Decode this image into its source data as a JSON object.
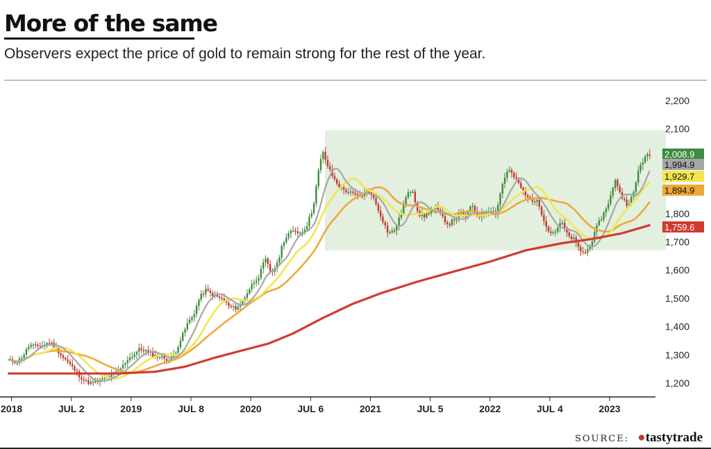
{
  "header": {
    "title": "More of the same",
    "subtitle": "Observers expect the price of gold to remain strong for the rest of the year."
  },
  "footer": {
    "source_label": "SOURCE:",
    "source_brand": "tastytrade"
  },
  "colors": {
    "up_candle": "#3d8c40",
    "down_candle": "#c0392b",
    "ma_grey": "#a6a6a6",
    "ma_yellow": "#f1e650",
    "ma_orange": "#eea83a",
    "ma_red": "#d13a32",
    "range_band": "#e3efdf"
  },
  "chart_data": {
    "type": "line",
    "x_tick_labels": [
      "2018",
      "JUL 2",
      "2019",
      "JUL 8",
      "2020",
      "JUL 6",
      "2021",
      "JUL 5",
      "2022",
      "JUL 4",
      "2023"
    ],
    "y_tick_labels": [
      "1,200",
      "1,300",
      "1,400",
      "1,500",
      "1,600",
      "1,700",
      "1,800",
      "2,100",
      "2,200"
    ],
    "ylim": [
      1170,
      2230
    ],
    "highlight_band": {
      "x_from": 2020.62,
      "x_to": 2023.47,
      "y_from": 1670,
      "y_to": 2095
    },
    "price_labels": [
      {
        "series": "Price",
        "value": 2008.9,
        "text": "2,008.9",
        "color": "#3d8c40",
        "text_color": "#ffffff"
      },
      {
        "series": "MA-grey",
        "value": 1994.9,
        "text": "1,994.9",
        "color": "#a6a6a6",
        "text_color": "#111111"
      },
      {
        "series": "MA-yellow",
        "value": 1929.7,
        "text": "1,929.7",
        "color": "#f1e650",
        "text_color": "#111111"
      },
      {
        "series": "MA-orange",
        "value": 1894.9,
        "text": "1,894.9",
        "color": "#eea83a",
        "text_color": "#111111"
      },
      {
        "series": "MA-red",
        "value": 1759.6,
        "text": "1,759.6",
        "color": "#d13a32",
        "text_color": "#ffffff"
      }
    ],
    "price_path": [
      [
        2017.97,
        1280
      ],
      [
        2018.05,
        1275
      ],
      [
        2018.1,
        1300
      ],
      [
        2018.15,
        1335
      ],
      [
        2018.2,
        1330
      ],
      [
        2018.27,
        1335
      ],
      [
        2018.32,
        1345
      ],
      [
        2018.37,
        1325
      ],
      [
        2018.42,
        1295
      ],
      [
        2018.47,
        1275
      ],
      [
        2018.52,
        1250
      ],
      [
        2018.57,
        1225
      ],
      [
        2018.62,
        1205
      ],
      [
        2018.67,
        1200
      ],
      [
        2018.72,
        1205
      ],
      [
        2018.77,
        1215
      ],
      [
        2018.82,
        1225
      ],
      [
        2018.87,
        1235
      ],
      [
        2018.92,
        1255
      ],
      [
        2018.97,
        1285
      ],
      [
        2019.02,
        1300
      ],
      [
        2019.07,
        1320
      ],
      [
        2019.12,
        1315
      ],
      [
        2019.17,
        1300
      ],
      [
        2019.22,
        1295
      ],
      [
        2019.27,
        1290
      ],
      [
        2019.32,
        1280
      ],
      [
        2019.37,
        1310
      ],
      [
        2019.42,
        1360
      ],
      [
        2019.47,
        1410
      ],
      [
        2019.52,
        1440
      ],
      [
        2019.57,
        1500
      ],
      [
        2019.62,
        1530
      ],
      [
        2019.67,
        1515
      ],
      [
        2019.72,
        1505
      ],
      [
        2019.77,
        1495
      ],
      [
        2019.82,
        1470
      ],
      [
        2019.87,
        1465
      ],
      [
        2019.92,
        1480
      ],
      [
        2019.97,
        1520
      ],
      [
        2020.02,
        1555
      ],
      [
        2020.07,
        1580
      ],
      [
        2020.12,
        1640
      ],
      [
        2020.17,
        1590
      ],
      [
        2020.22,
        1620
      ],
      [
        2020.27,
        1700
      ],
      [
        2020.32,
        1730
      ],
      [
        2020.37,
        1740
      ],
      [
        2020.42,
        1730
      ],
      [
        2020.47,
        1760
      ],
      [
        2020.52,
        1820
      ],
      [
        2020.57,
        1960
      ],
      [
        2020.6,
        2020
      ],
      [
        2020.65,
        1960
      ],
      [
        2020.7,
        1920
      ],
      [
        2020.75,
        1890
      ],
      [
        2020.8,
        1880
      ],
      [
        2020.85,
        1870
      ],
      [
        2020.9,
        1860
      ],
      [
        2020.95,
        1870
      ],
      [
        2021.0,
        1880
      ],
      [
        2021.05,
        1830
      ],
      [
        2021.1,
        1780
      ],
      [
        2021.15,
        1730
      ],
      [
        2021.2,
        1740
      ],
      [
        2021.25,
        1790
      ],
      [
        2021.3,
        1860
      ],
      [
        2021.35,
        1890
      ],
      [
        2021.4,
        1800
      ],
      [
        2021.45,
        1790
      ],
      [
        2021.5,
        1810
      ],
      [
        2021.55,
        1820
      ],
      [
        2021.6,
        1790
      ],
      [
        2021.65,
        1760
      ],
      [
        2021.7,
        1780
      ],
      [
        2021.75,
        1800
      ],
      [
        2021.8,
        1790
      ],
      [
        2021.85,
        1830
      ],
      [
        2021.9,
        1790
      ],
      [
        2021.95,
        1800
      ],
      [
        2022.0,
        1815
      ],
      [
        2022.05,
        1800
      ],
      [
        2022.1,
        1900
      ],
      [
        2022.15,
        1960
      ],
      [
        2022.2,
        1930
      ],
      [
        2022.25,
        1900
      ],
      [
        2022.3,
        1860
      ],
      [
        2022.35,
        1850
      ],
      [
        2022.4,
        1840
      ],
      [
        2022.45,
        1780
      ],
      [
        2022.5,
        1730
      ],
      [
        2022.55,
        1740
      ],
      [
        2022.6,
        1770
      ],
      [
        2022.65,
        1720
      ],
      [
        2022.7,
        1710
      ],
      [
        2022.75,
        1670
      ],
      [
        2022.8,
        1660
      ],
      [
        2022.85,
        1700
      ],
      [
        2022.9,
        1760
      ],
      [
        2022.95,
        1800
      ],
      [
        2023.0,
        1850
      ],
      [
        2023.05,
        1920
      ],
      [
        2023.1,
        1860
      ],
      [
        2023.15,
        1830
      ],
      [
        2023.2,
        1870
      ],
      [
        2023.25,
        1970
      ],
      [
        2023.3,
        2000
      ],
      [
        2023.34,
        2008.9
      ]
    ],
    "ma_red_path": [
      [
        2017.97,
        1234
      ],
      [
        2018.5,
        1234
      ],
      [
        2018.9,
        1234
      ],
      [
        2019.2,
        1240
      ],
      [
        2019.45,
        1258
      ],
      [
        2019.7,
        1290
      ],
      [
        2019.95,
        1318
      ],
      [
        2020.15,
        1340
      ],
      [
        2020.35,
        1375
      ],
      [
        2020.6,
        1430
      ],
      [
        2020.85,
        1480
      ],
      [
        2021.1,
        1520
      ],
      [
        2021.4,
        1560
      ],
      [
        2021.7,
        1595
      ],
      [
        2022.0,
        1630
      ],
      [
        2022.3,
        1670
      ],
      [
        2022.6,
        1695
      ],
      [
        2022.85,
        1710
      ],
      [
        2023.1,
        1730
      ],
      [
        2023.34,
        1759.6
      ]
    ],
    "smoothing_windows": {
      "grey": 2,
      "yellow": 4,
      "orange": 7
    }
  }
}
